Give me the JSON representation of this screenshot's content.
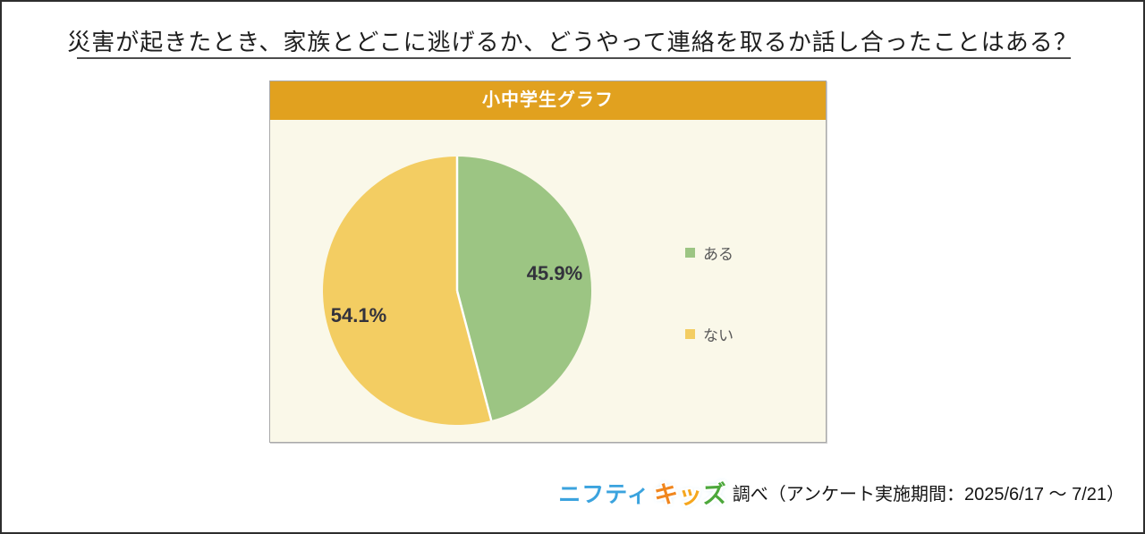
{
  "page_title": "災害が起きたとき、家族とどこに逃げるか、どうやって連絡を取るか話し合ったことはある？",
  "panel": {
    "header_bg": "#E1A11F",
    "body_bg": "#FAF8E9",
    "border_color": "#A9A9A9"
  },
  "chart_data": {
    "type": "pie",
    "title": "小中学生グラフ",
    "categories": [
      "ある",
      "ない"
    ],
    "values": [
      45.9,
      54.1
    ],
    "value_labels": [
      "45.9%",
      "54.1%"
    ],
    "colors": [
      "#9CC583",
      "#F3CD62"
    ],
    "label_color": "#33323C",
    "legend_position": "right",
    "start_angle_deg": 0,
    "slice_border_color": "#FFFFFF",
    "background": "#FAF8E9"
  },
  "footer": {
    "logo": {
      "nifty_text": "ニフティ",
      "nifty_color": "#3BA3DE",
      "kids_letters": [
        {
          "char": "キ",
          "color": "#F0861E"
        },
        {
          "char": "ッ",
          "color": "#F5A71F"
        },
        {
          "char": "ズ",
          "color": "#4CA83C"
        }
      ]
    },
    "text": "調べ（アンケート実施期間：2025/6/17 ～ 7/21）"
  }
}
